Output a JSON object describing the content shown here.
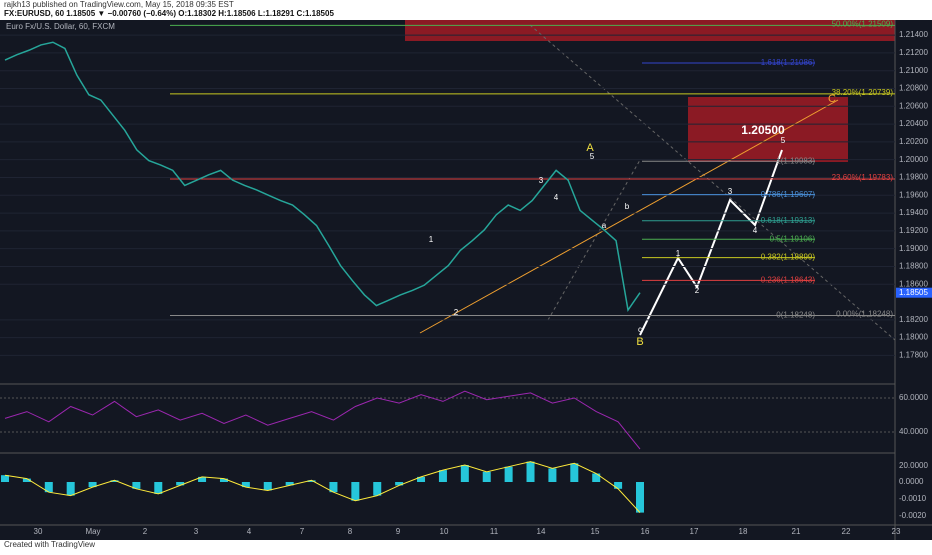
{
  "header": {
    "publisher": "rajkh13 published on TradingView.com, May 15, 2018 09:35 EST",
    "symbol_line": "FX:EURUSD, 60  1.18505 ▼ −0.00760 (−0.64%)  O:1.18302 H:1.18506 L:1.18291 C:1.18505",
    "series_title": "Euro Fx/U.S. Dollar, 60, FXCM"
  },
  "price_axis": {
    "ylim": [
      1.1749,
      1.2157
    ],
    "ticks": [
      {
        "value": 1.214,
        "label": "1.21400"
      },
      {
        "value": 1.212,
        "label": "1.21200"
      },
      {
        "value": 1.21,
        "label": "1.21000"
      },
      {
        "value": 1.208,
        "label": "1.20800"
      },
      {
        "value": 1.206,
        "label": "1.20600"
      },
      {
        "value": 1.204,
        "label": "1.20400"
      },
      {
        "value": 1.202,
        "label": "1.20200"
      },
      {
        "value": 1.2,
        "label": "1.20000"
      },
      {
        "value": 1.198,
        "label": "1.19800"
      },
      {
        "value": 1.196,
        "label": "1.19600"
      },
      {
        "value": 1.194,
        "label": "1.19400"
      },
      {
        "value": 1.192,
        "label": "1.19200"
      },
      {
        "value": 1.19,
        "label": "1.19000"
      },
      {
        "value": 1.188,
        "label": "1.18800"
      },
      {
        "value": 1.186,
        "label": "1.18600"
      },
      {
        "value": 1.182,
        "label": "1.18200"
      },
      {
        "value": 1.18,
        "label": "1.18000"
      },
      {
        "value": 1.178,
        "label": "1.17800"
      }
    ],
    "last": {
      "value": 1.18505,
      "label": "1.18505"
    }
  },
  "price": [
    1.2112,
    1.2118,
    1.2123,
    1.2129,
    1.2132,
    1.2125,
    1.2095,
    1.2073,
    1.2067,
    1.205,
    1.2033,
    1.2011,
    1.1999,
    1.1994,
    1.1988,
    1.1971,
    1.1977,
    1.1983,
    1.1988,
    1.1977,
    1.1971,
    1.1966,
    1.196,
    1.1954,
    1.1949,
    1.1938,
    1.1926,
    1.1904,
    1.1881,
    1.1864,
    1.1848,
    1.1836,
    1.1842,
    1.1848,
    1.1853,
    1.1859,
    1.187,
    1.1881,
    1.1898,
    1.1909,
    1.1921,
    1.1938,
    1.1949,
    1.1943,
    1.1954,
    1.1971,
    1.1988,
    1.1977,
    1.1943,
    1.1932,
    1.1921,
    1.1909,
    1.1831,
    1.18505
  ],
  "fib_levels": [
    {
      "label": "1.618(1.21086)",
      "price": 1.21086,
      "color": "#3344cc"
    },
    {
      "label": "1(1.19983)",
      "price": 1.19983,
      "color": "#888888"
    },
    {
      "label": "0.786(1.19607)",
      "price": 1.19607,
      "color": "#4a90d9"
    },
    {
      "label": "0.618(1.19313)",
      "price": 1.19313,
      "color": "#2e9e8f"
    },
    {
      "label": "0.5(1.19106)",
      "price": 1.19106,
      "color": "#4caf50"
    },
    {
      "label": "0.382(1.18899)",
      "price": 1.18899,
      "color": "#c8c820"
    },
    {
      "label": "0.236(1.18643)",
      "price": 1.18643,
      "color": "#e04040"
    },
    {
      "label": "0(1.18248)",
      "price": 1.18248,
      "color": "#888888"
    }
  ],
  "retracement": [
    {
      "label": "50.00%(1.21509)",
      "price": 1.21509,
      "color": "#4caf50"
    },
    {
      "label": "38.20%(1.20739)",
      "price": 1.20739,
      "color": "#c8c820"
    },
    {
      "label": "23.60%(1.19783)",
      "price": 1.19783,
      "color": "#e04040"
    },
    {
      "label": "0.00%(1.18248)",
      "price": 1.18248,
      "color": "#888888"
    }
  ],
  "target": "1.20500",
  "waves": [
    "A",
    "B",
    "C",
    "1",
    "2",
    "3",
    "4",
    "5",
    "1",
    "2",
    "3",
    "4",
    "5",
    "a",
    "b",
    "c"
  ],
  "rsi": {
    "ticks": [
      {
        "value": 60,
        "label": "60.0000"
      },
      {
        "value": 40,
        "label": "40.0000"
      },
      {
        "value": 20,
        "label": "20.0000"
      }
    ],
    "values": [
      48,
      52,
      46,
      55,
      50,
      58,
      49,
      53,
      47,
      51,
      45,
      50,
      44,
      48,
      52,
      47,
      55,
      60,
      57,
      62,
      58,
      64,
      59,
      61,
      63,
      57,
      60,
      52,
      46,
      30
    ]
  },
  "macd": {
    "ticks": [
      {
        "value": 0,
        "label": "0.0000"
      },
      {
        "value": -0.001,
        "label": "-0.0010"
      },
      {
        "value": -0.002,
        "label": "-0.0020"
      }
    ],
    "values": [
      0.0004,
      0.0002,
      -0.0006,
      -0.0008,
      -0.0003,
      0.0001,
      -0.0004,
      -0.0007,
      -0.0002,
      0.0003,
      0.0002,
      -0.0003,
      -0.0005,
      -0.0002,
      0.0001,
      -0.0006,
      -0.0011,
      -0.0008,
      -0.0002,
      0.0003,
      0.0007,
      0.001,
      0.0006,
      0.0009,
      0.0012,
      0.0008,
      0.0011,
      0.0005,
      -0.0004,
      -0.0018
    ]
  },
  "time_axis": [
    "30",
    "May",
    "2",
    "3",
    "4",
    "7",
    "8",
    "9",
    "10",
    "11",
    "14",
    "15",
    "16",
    "17",
    "18",
    "21",
    "22",
    "23"
  ],
  "footer": "Created with TradingView"
}
